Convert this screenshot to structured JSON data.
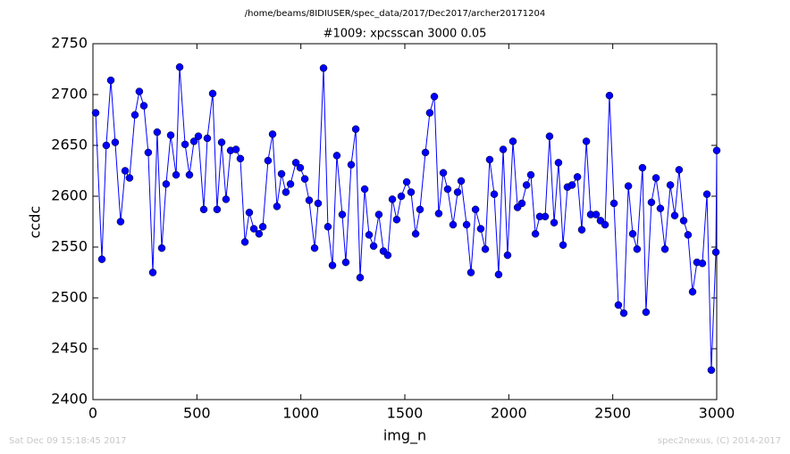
{
  "chart_data": {
    "type": "line",
    "suptitle": "/home/beams/8IDIUSER/spec_data/2017/Dec2017/archer20171204",
    "title": "#1009: xpcsscan 3000 0.05",
    "x_label": "img_n",
    "y_label": "ccdc",
    "footer_left": "Sat Dec 09 15:18:45 2017",
    "footer_right": "spec2nexus, (C) 2014-2017",
    "xlim": [
      0,
      3000
    ],
    "xticks": [
      0,
      500,
      1000,
      1500,
      2000,
      2500,
      3000
    ],
    "ylim": [
      2400,
      2750
    ],
    "yticks": [
      2400,
      2450,
      2500,
      2550,
      2600,
      2650,
      2700,
      2750
    ],
    "x": [
      13,
      43,
      64,
      86,
      107,
      133,
      155,
      176,
      202,
      223,
      245,
      266,
      288,
      309,
      331,
      352,
      374,
      400,
      417,
      443,
      464,
      486,
      507,
      533,
      550,
      576,
      597,
      619,
      640,
      662,
      688,
      709,
      731,
      752,
      774,
      799,
      817,
      842,
      864,
      885,
      907,
      928,
      950,
      976,
      997,
      1019,
      1040,
      1066,
      1083,
      1109,
      1130,
      1152,
      1173,
      1199,
      1216,
      1242,
      1264,
      1285,
      1307,
      1328,
      1350,
      1375,
      1397,
      1418,
      1440,
      1461,
      1483,
      1509,
      1530,
      1552,
      1573,
      1599,
      1620,
      1642,
      1663,
      1685,
      1706,
      1732,
      1754,
      1771,
      1797,
      1818,
      1840,
      1865,
      1887,
      1908,
      1930,
      1951,
      1973,
      1994,
      2020,
      2042,
      2063,
      2085,
      2106,
      2128,
      2149,
      2175,
      2196,
      2218,
      2239,
      2261,
      2282,
      2304,
      2330,
      2351,
      2373,
      2394,
      2420,
      2441,
      2463,
      2484,
      2506,
      2527,
      2553,
      2575,
      2596,
      2617,
      2643,
      2660,
      2686,
      2708,
      2729,
      2751,
      2777,
      2798,
      2819,
      2841,
      2862,
      2884,
      2905,
      2931,
      2953,
      2974,
      2996,
      3000
    ],
    "series": [
      {
        "name": "ccdc",
        "color": "#0000ff",
        "values": [
          2682,
          2538,
          2650,
          2714,
          2653,
          2575,
          2625,
          2618,
          2680,
          2703,
          2689,
          2643,
          2525,
          2663,
          2549,
          2612,
          2660,
          2621,
          2727,
          2651,
          2621,
          2654,
          2659,
          2587,
          2657,
          2701,
          2587,
          2653,
          2597,
          2645,
          2646,
          2637,
          2555,
          2584,
          2568,
          2563,
          2570,
          2635,
          2661,
          2590,
          2622,
          2604,
          2612,
          2633,
          2628,
          2617,
          2596,
          2549,
          2593,
          2726,
          2570,
          2532,
          2640,
          2582,
          2535,
          2631,
          2666,
          2520,
          2607,
          2562,
          2551,
          2582,
          2546,
          2542,
          2597,
          2577,
          2600,
          2614,
          2604,
          2563,
          2587,
          2643,
          2682,
          2698,
          2583,
          2623,
          2607,
          2572,
          2604,
          2615,
          2572,
          2525,
          2587,
          2568,
          2548,
          2636,
          2602,
          2523,
          2646,
          2542,
          2654,
          2589,
          2593,
          2611,
          2621,
          2563,
          2580,
          2580,
          2659,
          2574,
          2633,
          2552,
          2609,
          2611,
          2619,
          2567,
          2654,
          2582,
          2582,
          2576,
          2572,
          2699,
          2593,
          2493,
          2485,
          2610,
          2563,
          2548,
          2628,
          2486,
          2594,
          2618,
          2588,
          2548,
          2611,
          2581,
          2626,
          2576,
          2562,
          2506,
          2535,
          2534,
          2602,
          2429,
          2545,
          2645
        ]
      }
    ]
  }
}
